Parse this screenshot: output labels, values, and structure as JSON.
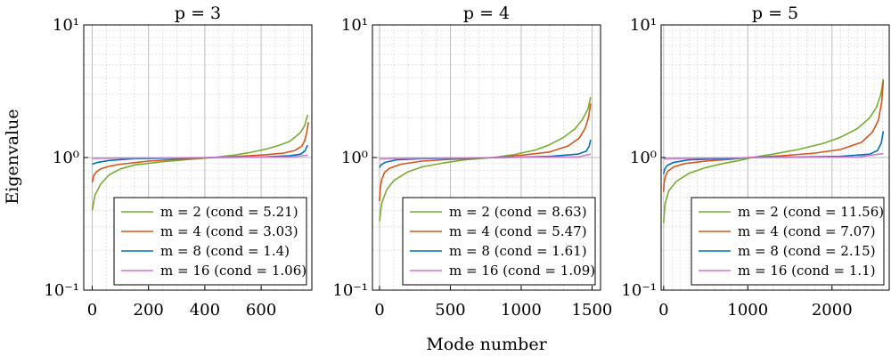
{
  "ylabel": "Eigenvalue",
  "xlabel": "Mode number",
  "colors": {
    "m2": "#77ac30",
    "m4": "#d95319",
    "m8": "#0072bd",
    "m16": "#cc79d4"
  },
  "chart_data": [
    {
      "type": "line",
      "title": "p = 3",
      "yscale": "log",
      "ylim": [
        0.1,
        10
      ],
      "xlim": [
        -30,
        780
      ],
      "xticks": [
        0,
        200,
        400,
        600
      ],
      "yticks": [
        {
          "v": 0.1,
          "label": "10⁻¹"
        },
        {
          "v": 1,
          "label": "10⁰"
        },
        {
          "v": 10,
          "label": "10¹"
        }
      ],
      "legend_position": "bottom-right",
      "grid": true,
      "series": [
        {
          "name": "m = 2 (cond = 5.21)",
          "color": "#77ac30",
          "x": [
            0,
            10,
            30,
            60,
            100,
            150,
            250,
            350,
            430,
            500,
            560,
            620,
            660,
            700,
            720,
            740,
            755,
            765
          ],
          "y": [
            0.4,
            0.52,
            0.63,
            0.74,
            0.82,
            0.88,
            0.93,
            0.97,
            1.0,
            1.04,
            1.09,
            1.16,
            1.23,
            1.32,
            1.42,
            1.55,
            1.75,
            2.1
          ]
        },
        {
          "name": "m = 4 (cond = 3.03)",
          "color": "#d95319",
          "x": [
            0,
            5,
            15,
            30,
            60,
            100,
            200,
            300,
            420,
            520,
            620,
            680,
            720,
            745,
            755,
            762,
            768
          ],
          "y": [
            0.65,
            0.73,
            0.78,
            0.82,
            0.86,
            0.89,
            0.94,
            0.97,
            1.0,
            1.02,
            1.05,
            1.08,
            1.13,
            1.22,
            1.35,
            1.55,
            1.85
          ]
        },
        {
          "name": "m = 8 (cond = 1.4)",
          "color": "#0072bd",
          "x": [
            0,
            20,
            60,
            150,
            300,
            450,
            600,
            700,
            740,
            755,
            765
          ],
          "y": [
            0.89,
            0.92,
            0.95,
            0.98,
            0.99,
            1.0,
            1.01,
            1.03,
            1.06,
            1.12,
            1.24
          ]
        },
        {
          "name": "m = 16 (cond = 1.06)",
          "color": "#cc79d4",
          "x": [
            0,
            100,
            400,
            700,
            765
          ],
          "y": [
            0.985,
            0.99,
            1.0,
            1.01,
            1.04
          ]
        }
      ]
    },
    {
      "type": "line",
      "title": "p = 4",
      "yscale": "log",
      "ylim": [
        0.1,
        10
      ],
      "xlim": [
        -50,
        1560
      ],
      "xticks": [
        0,
        500,
        1000,
        1500
      ],
      "yticks": [
        {
          "v": 0.1,
          "label": "10⁻¹"
        },
        {
          "v": 1,
          "label": "10⁰"
        },
        {
          "v": 10,
          "label": "10¹"
        }
      ],
      "legend_position": "bottom-right",
      "grid": true,
      "series": [
        {
          "name": "m = 2 (cond = 8.63)",
          "color": "#77ac30",
          "x": [
            0,
            15,
            50,
            100,
            200,
            300,
            450,
            600,
            800,
            950,
            1100,
            1200,
            1300,
            1380,
            1430,
            1470,
            1490
          ],
          "y": [
            0.33,
            0.45,
            0.57,
            0.67,
            0.78,
            0.85,
            0.91,
            0.96,
            1.0,
            1.05,
            1.14,
            1.25,
            1.42,
            1.65,
            1.92,
            2.3,
            2.85
          ]
        },
        {
          "name": "m = 4 (cond = 5.47)",
          "color": "#d95319",
          "x": [
            0,
            5,
            15,
            35,
            70,
            150,
            300,
            500,
            800,
            1000,
            1200,
            1330,
            1410,
            1450,
            1475,
            1490
          ],
          "y": [
            0.47,
            0.58,
            0.68,
            0.77,
            0.83,
            0.89,
            0.94,
            0.97,
            1.0,
            1.04,
            1.1,
            1.22,
            1.4,
            1.65,
            2.0,
            2.55
          ]
        },
        {
          "name": "m = 8 (cond = 1.61)",
          "color": "#0072bd",
          "x": [
            0,
            10,
            40,
            120,
            300,
            600,
            900,
            1200,
            1400,
            1460,
            1480,
            1490
          ],
          "y": [
            0.84,
            0.88,
            0.92,
            0.96,
            0.98,
            0.99,
            1.0,
            1.02,
            1.06,
            1.12,
            1.22,
            1.36
          ]
        },
        {
          "name": "m = 16 (cond = 1.09)",
          "color": "#cc79d4",
          "x": [
            0,
            200,
            800,
            1400,
            1490
          ],
          "y": [
            0.975,
            0.985,
            1.0,
            1.01,
            1.06
          ]
        }
      ]
    },
    {
      "type": "line",
      "title": "p = 5",
      "yscale": "log",
      "ylim": [
        0.1,
        10
      ],
      "xlim": [
        -30,
        2680
      ],
      "xticks": [
        0,
        1000,
        2000
      ],
      "yticks": [
        {
          "v": 0.1,
          "label": "10⁻¹"
        },
        {
          "v": 1,
          "label": "10⁰"
        },
        {
          "v": 10,
          "label": "10¹"
        }
      ],
      "legend_position": "bottom-right",
      "grid": true,
      "series": [
        {
          "name": "m = 2 (cond = 11.56)",
          "color": "#77ac30",
          "x": [
            0,
            15,
            60,
            150,
            300,
            500,
            700,
            900,
            1050,
            1300,
            1600,
            1900,
            2100,
            2300,
            2450,
            2530,
            2580,
            2610
          ],
          "y": [
            0.32,
            0.44,
            0.56,
            0.66,
            0.76,
            0.84,
            0.9,
            0.95,
            1.0,
            1.06,
            1.15,
            1.28,
            1.42,
            1.65,
            2.0,
            2.4,
            3.0,
            3.9
          ]
        },
        {
          "name": "m = 4 (cond = 7.07)",
          "color": "#d95319",
          "x": [
            0,
            5,
            20,
            50,
            120,
            250,
            500,
            800,
            1000,
            1400,
            1800,
            2100,
            2350,
            2480,
            2550,
            2590,
            2610
          ],
          "y": [
            0.55,
            0.64,
            0.72,
            0.79,
            0.85,
            0.9,
            0.94,
            0.97,
            1.0,
            1.03,
            1.08,
            1.15,
            1.3,
            1.55,
            1.9,
            2.6,
            3.8
          ]
        },
        {
          "name": "m = 8 (cond = 2.15)",
          "color": "#0072bd",
          "x": [
            0,
            10,
            40,
            120,
            300,
            700,
            1100,
            1600,
            2100,
            2450,
            2540,
            2585,
            2610
          ],
          "y": [
            0.75,
            0.81,
            0.87,
            0.92,
            0.96,
            0.98,
            1.0,
            1.01,
            1.02,
            1.06,
            1.13,
            1.28,
            1.58
          ]
        },
        {
          "name": "m = 16 (cond = 1.1)",
          "color": "#cc79d4",
          "x": [
            0,
            300,
            1100,
            2300,
            2610
          ],
          "y": [
            0.975,
            0.985,
            1.0,
            1.01,
            1.07
          ]
        }
      ]
    }
  ]
}
